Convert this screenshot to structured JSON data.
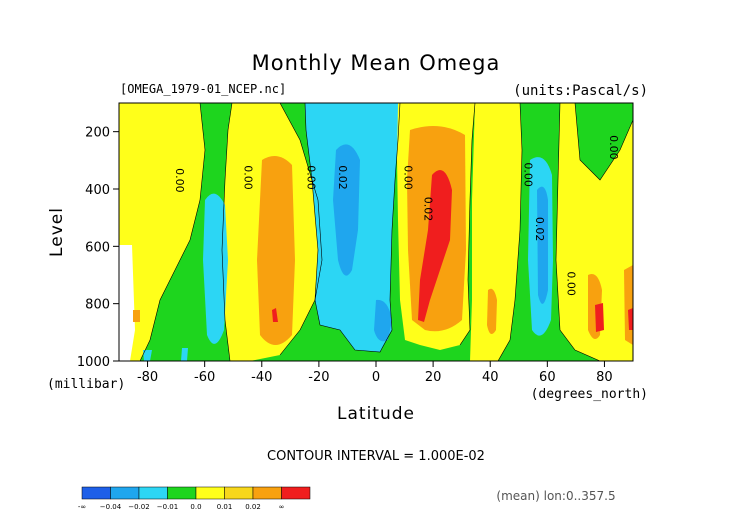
{
  "chart_data": {
    "type": "contour",
    "title": "Monthly Mean Omega",
    "file_label": "[OMEGA_1979-01_NCEP.nc]",
    "units_label": "(units:Pascal/s)",
    "xlabel": "Latitude",
    "x_units": "(degrees_north)",
    "ylabel": "Level",
    "y_units": "(millibar)",
    "xlim": [
      -90,
      90
    ],
    "ylim": [
      1000,
      100
    ],
    "y_inverted": true,
    "x_ticks": [
      -80,
      -60,
      -40,
      -20,
      0,
      20,
      40,
      60,
      80
    ],
    "y_ticks": [
      200,
      400,
      600,
      800,
      1000
    ],
    "contour_interval_label": "CONTOUR INTERVAL = 1.000E-02",
    "mean_note": "(mean) lon:0..357.5",
    "contour_labels": [
      {
        "text": "0.00",
        "x": -70,
        "y": 370
      },
      {
        "text": "0.00",
        "x": -46,
        "y": 360
      },
      {
        "text": "0.00",
        "x": -24,
        "y": 360
      },
      {
        "text": "0.02",
        "x": -13,
        "y": 360
      },
      {
        "text": "0.00",
        "x": 10,
        "y": 360
      },
      {
        "text": "0.02",
        "x": 17,
        "y": 470
      },
      {
        "text": "0.00",
        "x": 52,
        "y": 350
      },
      {
        "text": "0.02",
        "x": 56,
        "y": 540
      },
      {
        "text": "0.00",
        "x": 67,
        "y": 730
      },
      {
        "text": "0.00",
        "x": 82,
        "y": 255
      }
    ],
    "colorbar": {
      "colors": [
        "#1e5fe8",
        "#1fa6ee",
        "#2cd6f4",
        "#1ed51e",
        "#ffff1a",
        "#f7d71b",
        "#f8a10f",
        "#f01e1e"
      ],
      "labels": [
        "-∞",
        "−0.04",
        "−0.02",
        "−0.01",
        "0.0",
        "0.01",
        "0.02",
        "∞"
      ]
    }
  }
}
